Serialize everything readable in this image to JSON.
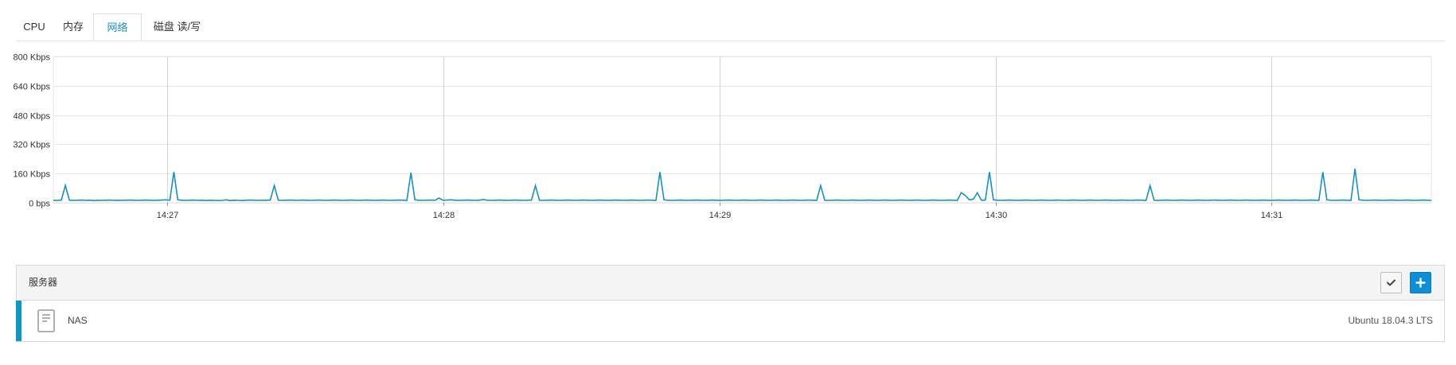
{
  "tabs": [
    {
      "label": "CPU",
      "active": false
    },
    {
      "label": "内存",
      "active": false
    },
    {
      "label": "网络",
      "active": true
    },
    {
      "label": "磁盘 读/写",
      "active": false
    }
  ],
  "colors": {
    "accent": "#1b8fc6",
    "line": "#1592c0",
    "add_button": "#0d8ed8",
    "row_accent": "#0d97c9"
  },
  "chart_data": {
    "type": "line",
    "x_unit": "minutes",
    "x_range": [
      "14:26:37",
      "14:31:35"
    ],
    "ylim": [
      0,
      800
    ],
    "yticks": [
      {
        "value": 0,
        "label": "0 bps"
      },
      {
        "value": 160,
        "label": "160 Kbps"
      },
      {
        "value": 320,
        "label": "320 Kbps"
      },
      {
        "value": 480,
        "label": "480 Kbps"
      },
      {
        "value": 640,
        "label": "640 Kbps"
      },
      {
        "value": 800,
        "label": "800 Kbps"
      }
    ],
    "xticks": [
      "14:27",
      "14:28",
      "14:29",
      "14:30",
      "14:31"
    ],
    "grid": true,
    "series": [
      {
        "values": [
          14,
          13,
          15,
          95,
          14,
          13,
          14,
          15,
          13,
          14,
          12,
          14,
          13,
          14,
          15,
          13,
          14,
          13,
          14,
          15,
          14,
          13,
          14,
          15,
          14,
          13,
          14,
          15,
          16,
          14,
          168,
          16,
          14,
          13,
          14,
          15,
          13,
          14,
          12,
          14,
          13,
          12,
          13,
          16,
          12,
          14,
          13,
          12,
          14,
          15,
          14,
          13,
          14,
          14,
          15,
          94,
          14,
          13,
          14,
          15,
          14,
          13,
          15,
          14,
          13,
          14,
          15,
          14,
          13,
          14,
          15,
          14,
          13,
          14,
          15,
          14,
          13,
          14,
          15,
          14,
          13,
          14,
          15,
          14,
          13,
          14,
          15,
          14,
          13,
          165,
          16,
          14,
          13,
          14,
          15,
          14,
          26,
          14,
          15,
          16,
          14,
          13,
          14,
          15,
          14,
          13,
          14,
          18,
          14,
          13,
          14,
          15,
          14,
          13,
          14,
          15,
          14,
          13,
          14,
          15,
          94,
          14,
          13,
          14,
          15,
          14,
          13,
          14,
          15,
          14,
          13,
          14,
          15,
          14,
          13,
          14,
          15,
          14,
          13,
          14,
          15,
          14,
          13,
          14,
          15,
          14,
          13,
          14,
          15,
          14,
          13,
          168,
          16,
          14,
          13,
          14,
          15,
          14,
          13,
          14,
          15,
          14,
          13,
          14,
          15,
          14,
          13,
          14,
          15,
          14,
          13,
          14,
          15,
          14,
          13,
          14,
          15,
          14,
          13,
          14,
          15,
          14,
          13,
          14,
          15,
          14,
          13,
          14,
          15,
          14,
          13,
          94,
          14,
          13,
          14,
          15,
          14,
          13,
          14,
          15,
          14,
          13,
          14,
          15,
          14,
          13,
          14,
          15,
          14,
          13,
          14,
          15,
          14,
          13,
          14,
          15,
          14,
          13,
          14,
          15,
          14,
          13,
          14,
          15,
          14,
          13,
          55,
          40,
          16,
          20,
          55,
          14,
          15,
          168,
          16,
          14,
          13,
          14,
          15,
          14,
          13,
          14,
          15,
          14,
          13,
          14,
          15,
          14,
          13,
          14,
          15,
          14,
          13,
          14,
          15,
          14,
          13,
          14,
          15,
          14,
          13,
          14,
          15,
          14,
          13,
          14,
          15,
          14,
          13,
          14,
          15,
          14,
          13,
          94,
          14,
          13,
          14,
          15,
          14,
          13,
          14,
          15,
          14,
          13,
          14,
          15,
          14,
          13,
          14,
          15,
          14,
          13,
          14,
          15,
          14,
          13,
          14,
          15,
          14,
          13,
          14,
          15,
          14,
          13,
          14,
          15,
          14,
          13,
          14,
          15,
          14,
          13,
          14,
          15,
          14,
          13,
          168,
          16,
          14,
          13,
          14,
          15,
          14,
          13,
          186,
          16,
          14,
          13,
          14,
          15,
          14,
          13,
          14,
          15,
          14,
          13,
          14,
          15,
          14,
          13,
          14,
          15,
          14,
          13
        ]
      }
    ]
  },
  "servers_panel": {
    "title": "服务器",
    "check_icon": "check-icon",
    "add_icon": "plus-icon",
    "rows": [
      {
        "icon": "server-icon",
        "name": "NAS",
        "os": "Ubuntu 18.04.3 LTS"
      }
    ]
  }
}
